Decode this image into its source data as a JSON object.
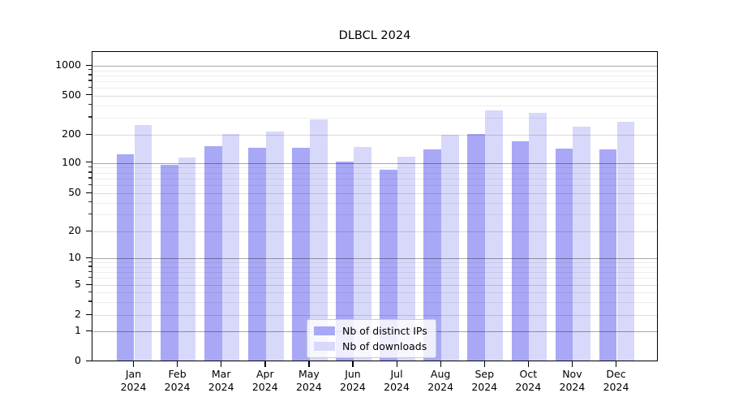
{
  "title": "DLBCL 2024",
  "legend": {
    "items": [
      {
        "label": "Nb of distinct IPs",
        "color": "#a8a8f6"
      },
      {
        "label": "Nb of downloads",
        "color": "#d8d8fa"
      }
    ]
  },
  "chart_data": {
    "type": "bar",
    "title": "DLBCL 2024",
    "categories": [
      "Jan 2024",
      "Feb 2024",
      "Mar 2024",
      "Apr 2024",
      "May 2024",
      "Jun 2024",
      "Jul 2024",
      "Aug 2024",
      "Sep 2024",
      "Oct 2024",
      "Nov 2024",
      "Dec 2024"
    ],
    "series": [
      {
        "name": "Nb of distinct IPs",
        "color": "#a8a8f6",
        "values": [
          122,
          96,
          150,
          146,
          146,
          102,
          85,
          140,
          204,
          170,
          143,
          138
        ]
      },
      {
        "name": "Nb of downloads",
        "color": "#d8d8fa",
        "values": [
          250,
          113,
          205,
          215,
          287,
          148,
          115,
          198,
          350,
          330,
          240,
          272
        ]
      }
    ],
    "xlabel": "",
    "ylabel": "",
    "yaxis": {
      "scale": "symlog",
      "tick_values": [
        0,
        1,
        2,
        5,
        10,
        20,
        50,
        100,
        200,
        500,
        1000
      ],
      "tick_labels": [
        "0",
        "1",
        "2",
        "5",
        "10",
        "20",
        "50",
        "100",
        "200",
        "500",
        "1000"
      ],
      "major_gridline_values": [
        1,
        10,
        100,
        1000
      ],
      "ylim_top": 1400
    },
    "grid": true,
    "legend_position": "lower center"
  }
}
